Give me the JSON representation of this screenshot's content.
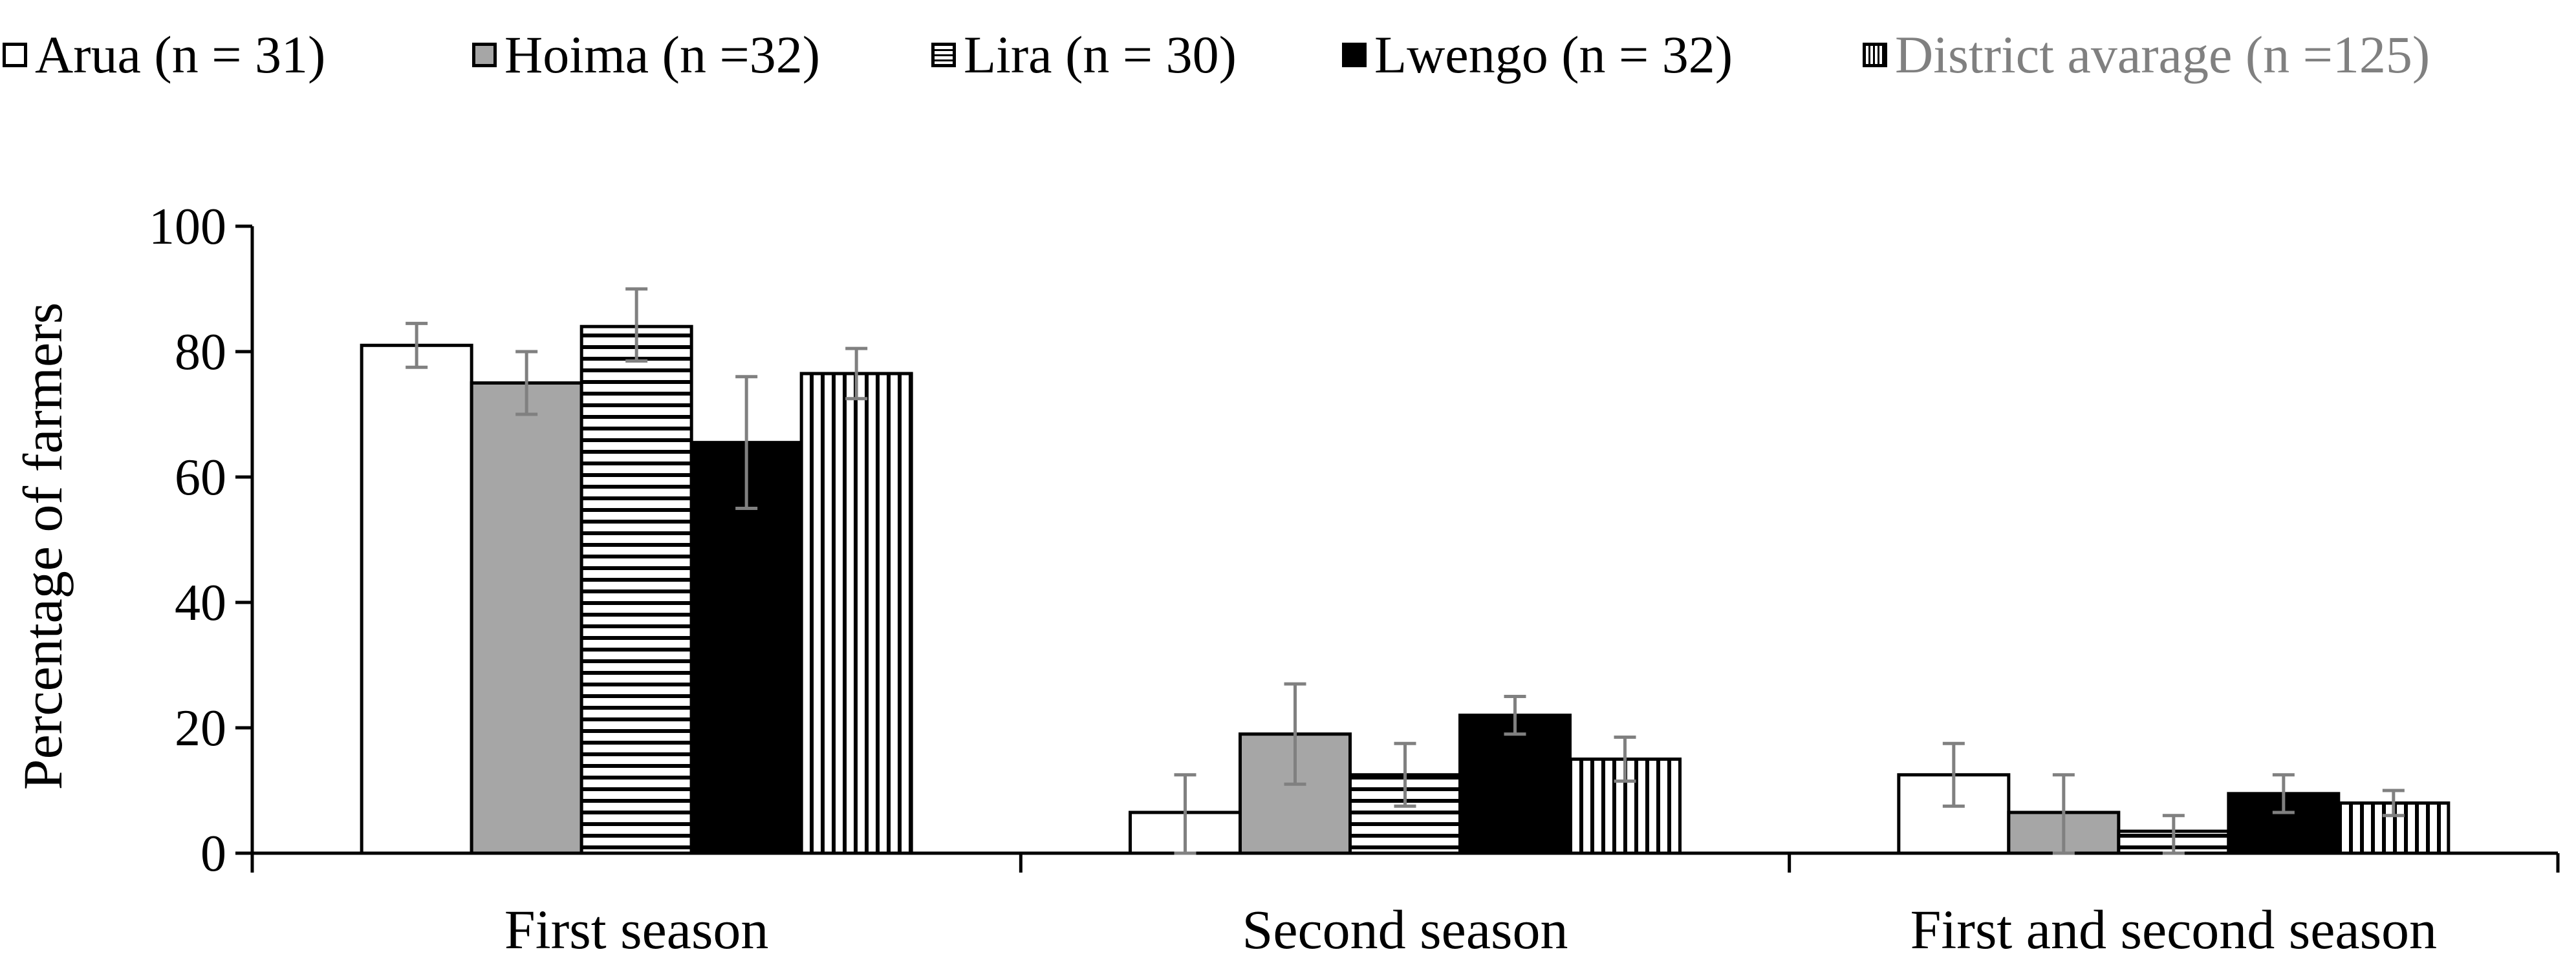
{
  "chart_data": {
    "type": "bar",
    "title": "",
    "xlabel": "",
    "ylabel": "Percentage of farmers",
    "ylim": [
      0,
      100
    ],
    "yticks": [
      0,
      20,
      40,
      60,
      80,
      100
    ],
    "categories": [
      "First season",
      "Second season",
      "First and second season"
    ],
    "series": [
      {
        "name": "Arua (n = 31)",
        "pattern": "white",
        "values": [
          81,
          6.5,
          12.5
        ],
        "err_low": [
          77.5,
          0,
          7.5
        ],
        "err_high": [
          84.5,
          12.5,
          17.5
        ]
      },
      {
        "name": "Hoima (n =32)",
        "pattern": "gray",
        "values": [
          75,
          19,
          6.5
        ],
        "err_low": [
          70,
          11,
          0
        ],
        "err_high": [
          80,
          27,
          12.5
        ]
      },
      {
        "name": "Lira (n = 30)",
        "pattern": "hline",
        "values": [
          84,
          12.5,
          3.5
        ],
        "err_low": [
          78.5,
          7.5,
          0
        ],
        "err_high": [
          90,
          17.5,
          6
        ]
      },
      {
        "name": "Lwengo (n = 32)",
        "pattern": "black",
        "values": [
          65.5,
          22,
          9.5
        ],
        "err_low": [
          55,
          19,
          6.5
        ],
        "err_high": [
          76,
          25,
          12.5
        ]
      },
      {
        "name": "District avarage (n =125)",
        "pattern": "vline",
        "values": [
          76.5,
          15,
          8
        ],
        "err_low": [
          72.5,
          11.5,
          6
        ],
        "err_high": [
          80.5,
          18.5,
          10
        ]
      }
    ],
    "legend_position": "top",
    "grid": false
  },
  "colors": {
    "axis": "#000000",
    "gray_fill": "#a6a6a6",
    "error_bar": "#808080",
    "legend_gray_text": "#808080"
  }
}
